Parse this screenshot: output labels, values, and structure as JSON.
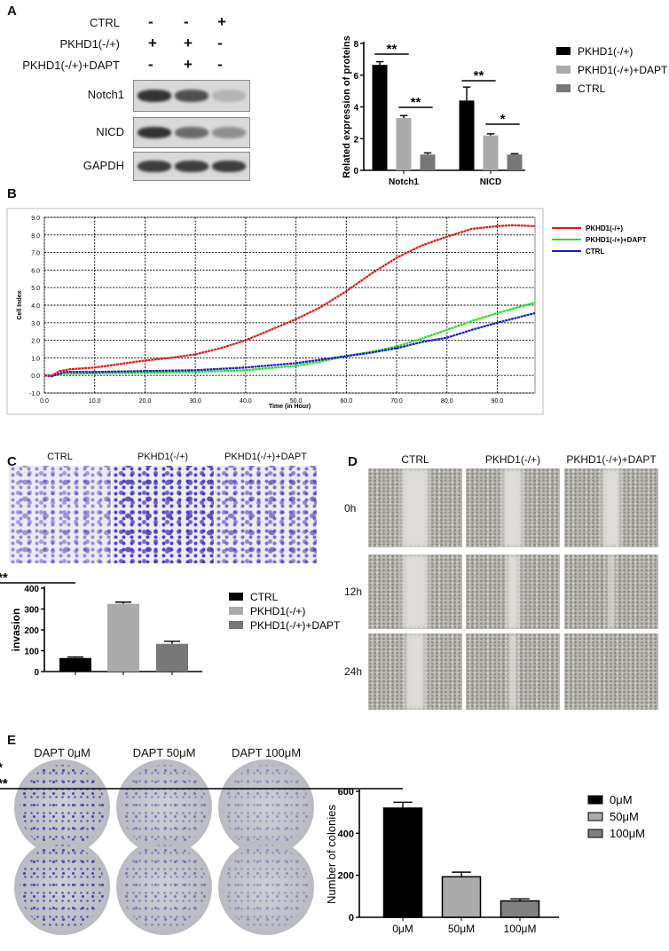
{
  "panels": {
    "A": "A",
    "B": "B",
    "C": "C",
    "D": "D",
    "E": "E"
  },
  "blot": {
    "conditions": [
      {
        "label": "CTRL",
        "signs": [
          "-",
          "-",
          "+"
        ]
      },
      {
        "label": "PKHD1(-/+)",
        "signs": [
          "+",
          "+",
          "-"
        ]
      },
      {
        "label": "PKHD1(-/+)+DAPT",
        "signs": [
          "-",
          "+",
          "-"
        ]
      }
    ],
    "rows": [
      {
        "label": "Notch1",
        "intensity": [
          0.9,
          0.75,
          0.2
        ]
      },
      {
        "label": "NICD",
        "intensity": [
          0.9,
          0.6,
          0.4
        ]
      },
      {
        "label": "GAPDH",
        "intensity": [
          0.85,
          0.85,
          0.85
        ]
      }
    ]
  },
  "transwell": {
    "columns": [
      "CTRL",
      "PKHD1(-/+)",
      "PKHD1(-/+)+DAPT"
    ]
  },
  "wound": {
    "columns": [
      "CTRL",
      "PKHD1(-/+)",
      "PKHD1(-/+)+DAPT"
    ],
    "rows": [
      "0h",
      "12h",
      "24h"
    ]
  },
  "colony": {
    "columns": [
      "DAPT 0μM",
      "DAPT 50μM",
      "DAPT 100μM"
    ]
  },
  "chart_data": [
    {
      "id": "A",
      "type": "bar",
      "ylabel": "Related expression of proteins",
      "ylim": [
        0,
        8
      ],
      "yticks": [
        0,
        2,
        4,
        6,
        8
      ],
      "categories": [
        "Notch1",
        "NICD"
      ],
      "series": [
        {
          "name": "PKHD1(-/+)",
          "color": "#000000",
          "values": [
            6.65,
            4.4
          ],
          "errors": [
            0.2,
            0.85
          ]
        },
        {
          "name": "PKHD1(-/+)+DAPT",
          "color": "#aaaaaa",
          "values": [
            3.3,
            2.2
          ],
          "errors": [
            0.15,
            0.1
          ]
        },
        {
          "name": "CTRL",
          "color": "#777777",
          "values": [
            1.0,
            1.0
          ],
          "errors": [
            0.1,
            0.05
          ]
        }
      ],
      "significance": [
        {
          "category": 0,
          "from": 0,
          "to": 1,
          "label": "**"
        },
        {
          "category": 0,
          "from": 1,
          "to": 2,
          "label": "**"
        },
        {
          "category": 1,
          "from": 0,
          "to": 1,
          "label": "**"
        },
        {
          "category": 1,
          "from": 1,
          "to": 2,
          "label": "*"
        }
      ],
      "legend": "right"
    },
    {
      "id": "B",
      "type": "line",
      "xlabel": "Time (in Hour)",
      "ylabel": "Cell Index",
      "xlim": [
        0,
        97.5
      ],
      "ylim": [
        -1,
        9
      ],
      "xticks": [
        "0.0",
        "10.0",
        "20.0",
        "30.0",
        "40.0",
        "50.0",
        "60.0",
        "70.0",
        "80.0",
        "90.0"
      ],
      "yticks": [
        "-1.0",
        "0.0",
        "1.0",
        "2.0",
        "3.0",
        "4.0",
        "5.0",
        "6.0",
        "7.0",
        "8.0",
        "9.0"
      ],
      "grid": true,
      "legend": "right",
      "series": [
        {
          "name": "PKHD1(-/+)",
          "color": "#e01818",
          "x": [
            0,
            1.5,
            3,
            5,
            10,
            15,
            20,
            25,
            30,
            35,
            40,
            45,
            50,
            55,
            60,
            65,
            70,
            75,
            80,
            85,
            90,
            93,
            97.5
          ],
          "y": [
            0,
            0,
            0.25,
            0.35,
            0.45,
            0.65,
            0.85,
            1.0,
            1.2,
            1.55,
            2.0,
            2.6,
            3.2,
            3.9,
            4.8,
            5.8,
            6.7,
            7.4,
            7.9,
            8.35,
            8.5,
            8.55,
            8.5
          ]
        },
        {
          "name": "PKHD1(-/+)+DAPT",
          "color": "#22dd22",
          "x": [
            0,
            1.5,
            4,
            10,
            20,
            30,
            40,
            50,
            55,
            60,
            65,
            70,
            75,
            80,
            85,
            90,
            97.5
          ],
          "y": [
            0,
            0,
            0.1,
            0.12,
            0.15,
            0.2,
            0.3,
            0.55,
            0.8,
            1.1,
            1.35,
            1.65,
            2.1,
            2.6,
            3.1,
            3.55,
            4.15
          ]
        },
        {
          "name": "CTRL",
          "color": "#1a1ad0",
          "x": [
            0,
            1.5,
            4,
            10,
            20,
            30,
            40,
            50,
            55,
            60,
            65,
            70,
            75,
            80,
            85,
            90,
            97.5
          ],
          "y": [
            0,
            -0.05,
            0.2,
            0.2,
            0.25,
            0.3,
            0.45,
            0.7,
            0.9,
            1.1,
            1.3,
            1.55,
            1.9,
            2.15,
            2.6,
            3.0,
            3.55
          ]
        }
      ]
    },
    {
      "id": "C",
      "type": "bar",
      "ylabel": "invasion",
      "ylim": [
        0,
        400
      ],
      "yticks": [
        0,
        100,
        200,
        300,
        400
      ],
      "categories": [
        "CTRL",
        "PKHD1(-/+)",
        "PKHD1(-/+)+DAPT"
      ],
      "show_xticklabels": false,
      "series": [
        {
          "values": [
            65,
            325,
            133
          ],
          "errors": [
            5,
            8,
            12
          ],
          "colors": [
            "#000000",
            "#aaaaaa",
            "#777777"
          ]
        }
      ],
      "significance": [
        {
          "from": 0,
          "to": 1,
          "label": "***"
        }
      ],
      "legend": "right"
    },
    {
      "id": "E",
      "type": "bar",
      "ylabel": "Number of colonies",
      "ylim": [
        0,
        600
      ],
      "yticks": [
        0,
        200,
        400,
        600
      ],
      "categories": [
        "0μM",
        "50μM",
        "100μM"
      ],
      "series": [
        {
          "values": [
            520,
            193,
            78
          ],
          "errors": [
            28,
            22,
            10
          ],
          "colors": [
            "#000000",
            "#aaaaaa",
            "#808080"
          ]
        }
      ],
      "significance": [
        {
          "from": 0,
          "to": 2,
          "label": "***"
        },
        {
          "from": 1,
          "to": 2,
          "label": "*"
        }
      ],
      "legend": "right"
    }
  ]
}
